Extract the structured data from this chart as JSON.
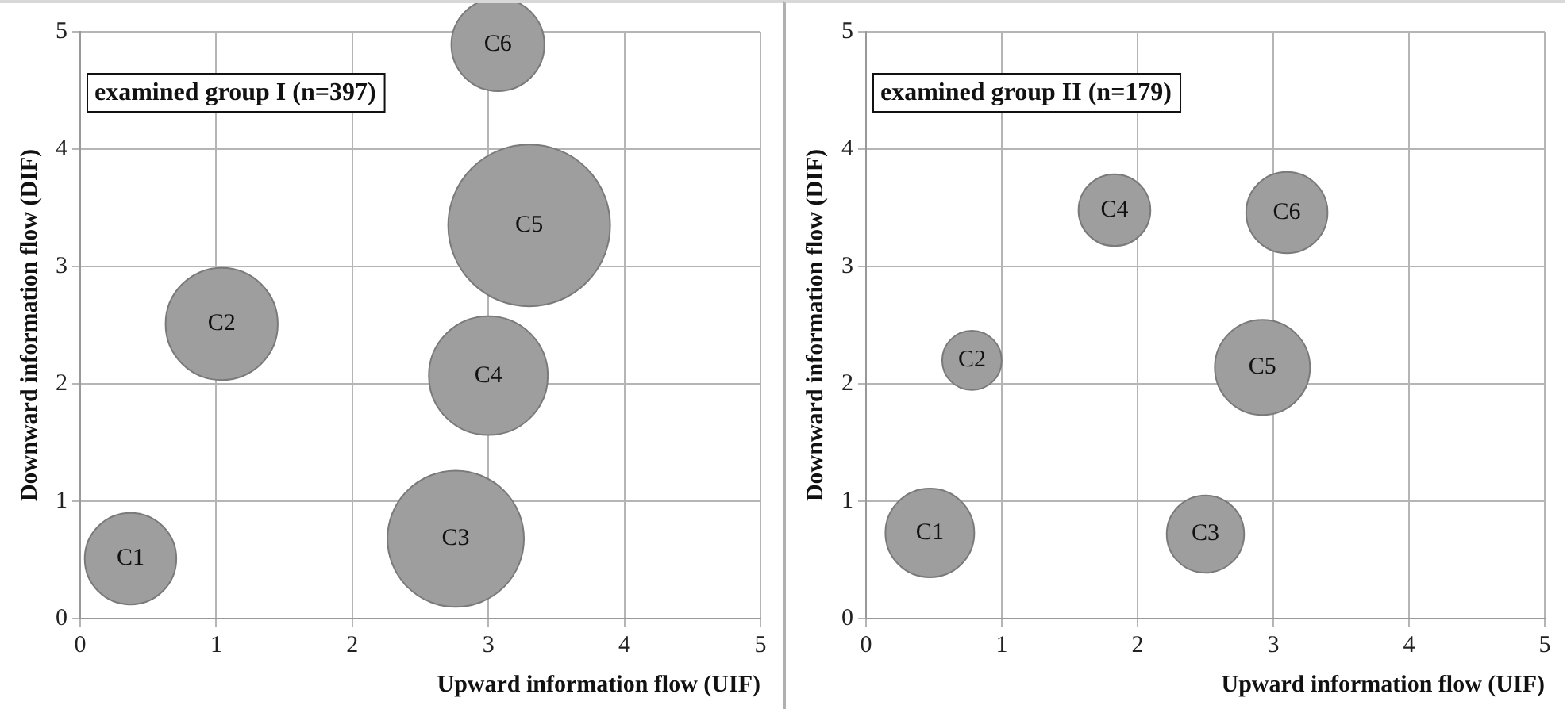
{
  "chart_data": [
    {
      "type": "bubble",
      "title": "examined group I (n=397)",
      "xlabel": "Upward information flow (UIF)",
      "ylabel": "Downward information flow (DIF)",
      "xlim": [
        0,
        5
      ],
      "ylim": [
        0,
        5
      ],
      "xticks": [
        0,
        1,
        2,
        3,
        4,
        5
      ],
      "yticks": [
        0,
        1,
        2,
        3,
        4,
        5
      ],
      "grid": true,
      "legend": false,
      "data_labels": false,
      "series": [
        {
          "name": "C1",
          "color": "#9e9e9e",
          "x": [
            0.37
          ],
          "values": [
            0.51
          ],
          "sizes": [
            0.32
          ]
        },
        {
          "name": "C2",
          "color": "#9e9e9e",
          "x": [
            1.04
          ],
          "values": [
            2.51
          ],
          "sizes": [
            0.48
          ]
        },
        {
          "name": "C3",
          "color": "#9e9e9e",
          "x": [
            2.76
          ],
          "values": [
            0.68
          ],
          "sizes": [
            0.71
          ]
        },
        {
          "name": "C4",
          "color": "#9e9e9e",
          "x": [
            3.0
          ],
          "values": [
            2.07
          ],
          "sizes": [
            0.54
          ]
        },
        {
          "name": "C5",
          "color": "#9e9e9e",
          "x": [
            3.3
          ],
          "values": [
            3.35
          ],
          "sizes": [
            1
          ]
        },
        {
          "name": "C6",
          "color": "#9e9e9e",
          "x": [
            3.07
          ],
          "values": [
            4.89
          ],
          "sizes": [
            0.33
          ]
        }
      ]
    },
    {
      "type": "bubble",
      "title": "examined group II (n=179)",
      "xlabel": "Upward information flow (UIF)",
      "ylabel": "Downward information flow (DIF)",
      "xlim": [
        0,
        5
      ],
      "ylim": [
        0,
        5
      ],
      "xticks": [
        0,
        1,
        2,
        3,
        4,
        5
      ],
      "yticks": [
        0,
        1,
        2,
        3,
        4,
        5
      ],
      "grid": true,
      "legend": false,
      "data_labels": false,
      "series": [
        {
          "name": "C1",
          "color": "#9e9e9e",
          "x": [
            0.47
          ],
          "values": [
            0.73
          ],
          "sizes": [
            0.87
          ]
        },
        {
          "name": "C2",
          "color": "#9e9e9e",
          "x": [
            0.78
          ],
          "values": [
            2.2
          ],
          "sizes": [
            0.39
          ]
        },
        {
          "name": "C3",
          "color": "#9e9e9e",
          "x": [
            2.5
          ],
          "values": [
            0.72
          ],
          "sizes": [
            0.66
          ]
        },
        {
          "name": "C4",
          "color": "#9e9e9e",
          "x": [
            1.83
          ],
          "values": [
            3.48
          ],
          "sizes": [
            0.57
          ]
        },
        {
          "name": "C5",
          "color": "#9e9e9e",
          "x": [
            2.92
          ],
          "values": [
            2.14
          ],
          "sizes": [
            1
          ]
        },
        {
          "name": "C6",
          "color": "#9e9e9e",
          "x": [
            3.1
          ],
          "values": [
            3.46
          ],
          "sizes": [
            0.73
          ]
        }
      ]
    }
  ]
}
